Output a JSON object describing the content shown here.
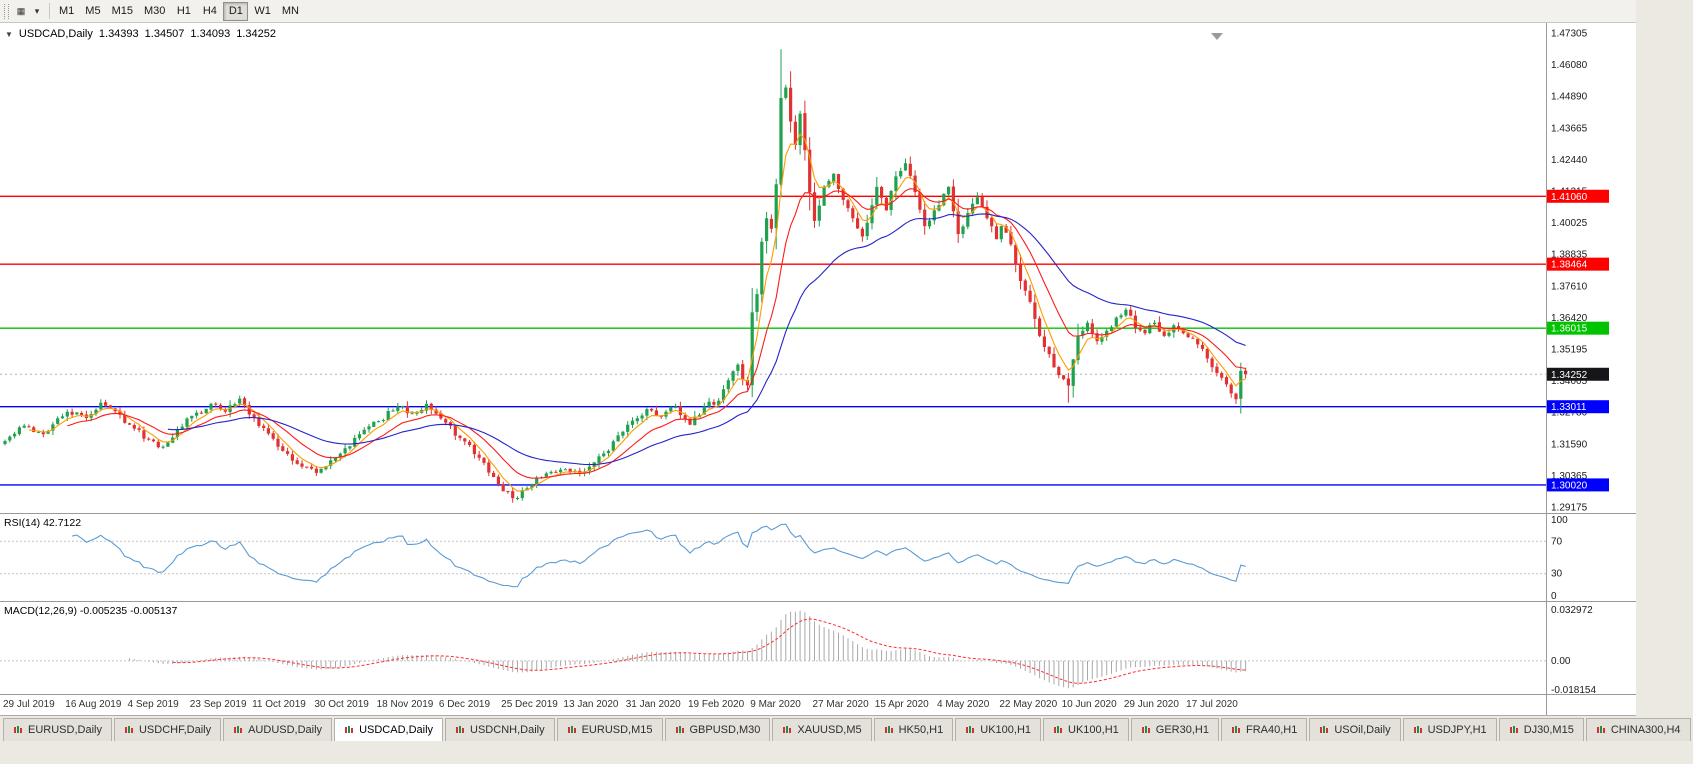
{
  "toolbar": {
    "icons": [
      {
        "name": "chart-icon",
        "glyph": "▦"
      },
      {
        "name": "dropdown-caret-icon",
        "glyph": "▾"
      }
    ],
    "timeframes": [
      {
        "label": "M1"
      },
      {
        "label": "M5"
      },
      {
        "label": "M15"
      },
      {
        "label": "M30"
      },
      {
        "label": "H1"
      },
      {
        "label": "H4"
      },
      {
        "label": "D1",
        "active": true
      },
      {
        "label": "W1"
      },
      {
        "label": "MN"
      }
    ]
  },
  "chart_header": {
    "collapse_glyph": "▼",
    "symbol": "USDCAD,Daily",
    "open": "1.34393",
    "high": "1.34507",
    "low": "1.34093",
    "close": "1.34252"
  },
  "chart_data": {
    "type": "candlestick",
    "symbol": "USDCAD",
    "timeframe": "Daily",
    "num_candles": 260,
    "candles_per_label": 13,
    "seed": 42,
    "ylim": [
      1.29175,
      1.47305
    ],
    "y_ticks": [
      "1.47305",
      "1.46080",
      "1.44890",
      "1.43665",
      "1.42440",
      "1.41215",
      "1.40025",
      "1.38835",
      "1.37610",
      "1.36420",
      "1.35195",
      "1.34005",
      "1.32780",
      "1.31590",
      "1.30365",
      "1.29175"
    ],
    "x_labels": [
      "29 Jul 2019",
      "16 Aug 2019",
      "4 Sep 2019",
      "23 Sep 2019",
      "11 Oct 2019",
      "30 Oct 2019",
      "18 Nov 2019",
      "6 Dec 2019",
      "25 Dec 2019",
      "13 Jan 2020",
      "31 Jan 2020",
      "19 Feb 2020",
      "9 Mar 2020",
      "27 Mar 2020",
      "15 Apr 2020",
      "4 May 2020",
      "22 May 2020",
      "10 Jun 2020",
      "29 Jun 2020",
      "17 Jul 2020"
    ],
    "price_anchors": [
      [
        0,
        1.317
      ],
      [
        4,
        1.3228
      ],
      [
        8,
        1.3196
      ],
      [
        13,
        1.3282
      ],
      [
        17,
        1.3258
      ],
      [
        20,
        1.3316
      ],
      [
        24,
        1.327
      ],
      [
        26,
        1.3232
      ],
      [
        30,
        1.3176
      ],
      [
        33,
        1.3148
      ],
      [
        36,
        1.3216
      ],
      [
        39,
        1.3266
      ],
      [
        43,
        1.3312
      ],
      [
        46,
        1.3282
      ],
      [
        49,
        1.3332
      ],
      [
        52,
        1.3258
      ],
      [
        55,
        1.3198
      ],
      [
        58,
        1.3132
      ],
      [
        62,
        1.3072
      ],
      [
        65,
        1.3048
      ],
      [
        68,
        1.3096
      ],
      [
        71,
        1.3142
      ],
      [
        74,
        1.3196
      ],
      [
        78,
        1.3246
      ],
      [
        82,
        1.3302
      ],
      [
        85,
        1.3276
      ],
      [
        88,
        1.3312
      ],
      [
        91,
        1.3256
      ],
      [
        95,
        1.3182
      ],
      [
        99,
        1.3106
      ],
      [
        102,
        1.3032
      ],
      [
        104,
        1.2978
      ],
      [
        107,
        1.2952
      ],
      [
        110,
        1.3006
      ],
      [
        113,
        1.3046
      ],
      [
        117,
        1.3062
      ],
      [
        120,
        1.3044
      ],
      [
        123,
        1.3088
      ],
      [
        126,
        1.3132
      ],
      [
        130,
        1.3232
      ],
      [
        134,
        1.3292
      ],
      [
        137,
        1.3262
      ],
      [
        140,
        1.3302
      ],
      [
        143,
        1.3232
      ],
      [
        146,
        1.3302
      ],
      [
        149,
        1.3324
      ],
      [
        151,
        1.3402
      ],
      [
        153,
        1.3462
      ],
      [
        154,
        1.3404
      ],
      [
        155,
        1.3382
      ],
      [
        156,
        1.3662
      ],
      [
        157,
        1.3732
      ],
      [
        158,
        1.3932
      ],
      [
        159,
        1.4022
      ],
      [
        160,
        1.3982
      ],
      [
        161,
        1.4152
      ],
      [
        162,
        1.4482
      ],
      [
        163,
        1.4522
      ],
      [
        164,
        1.4392
      ],
      [
        165,
        1.4302
      ],
      [
        166,
        1.4422
      ],
      [
        167,
        1.4282
      ],
      [
        168,
        1.4122
      ],
      [
        169,
        1.4012
      ],
      [
        171,
        1.4142
      ],
      [
        173,
        1.4192
      ],
      [
        175,
        1.4092
      ],
      [
        177,
        1.4022
      ],
      [
        179,
        1.3952
      ],
      [
        181,
        1.4072
      ],
      [
        182,
        1.4142
      ],
      [
        184,
        1.4052
      ],
      [
        186,
        1.4182
      ],
      [
        188,
        1.4232
      ],
      [
        190,
        1.4122
      ],
      [
        192,
        1.3992
      ],
      [
        194,
        1.4052
      ],
      [
        195,
        1.4072
      ],
      [
        197,
        1.4142
      ],
      [
        199,
        1.3962
      ],
      [
        201,
        1.4042
      ],
      [
        203,
        1.4102
      ],
      [
        205,
        1.4022
      ],
      [
        207,
        1.3942
      ],
      [
        208,
        1.3992
      ],
      [
        210,
        1.3922
      ],
      [
        212,
        1.3782
      ],
      [
        214,
        1.3702
      ],
      [
        216,
        1.3572
      ],
      [
        218,
        1.3502
      ],
      [
        220,
        1.3422
      ],
      [
        222,
        1.3382
      ],
      [
        224,
        1.3572
      ],
      [
        226,
        1.3622
      ],
      [
        228,
        1.3552
      ],
      [
        230,
        1.3592
      ],
      [
        232,
        1.3642
      ],
      [
        234,
        1.3672
      ],
      [
        236,
        1.3602
      ],
      [
        238,
        1.3582
      ],
      [
        240,
        1.3622
      ],
      [
        242,
        1.3572
      ],
      [
        244,
        1.3612
      ],
      [
        246,
        1.3582
      ],
      [
        248,
        1.3562
      ],
      [
        250,
        1.3522
      ],
      [
        252,
        1.3452
      ],
      [
        254,
        1.3412
      ],
      [
        256,
        1.3352
      ],
      [
        257,
        1.333
      ],
      [
        258,
        1.3438
      ],
      [
        259,
        1.34252
      ]
    ],
    "extremes": [
      {
        "index": 107,
        "low": 1.2952
      },
      {
        "index": 153,
        "high": 1.3465
      },
      {
        "index": 162,
        "high": 1.4668
      },
      {
        "index": 222,
        "low": 1.3316
      },
      {
        "index": 257,
        "low": 1.3312
      }
    ],
    "ohlc_current": {
      "open": 1.34393,
      "high": 1.34507,
      "low": 1.34093,
      "close": 1.34252
    },
    "current_price": {
      "value": 1.34252,
      "label": "1.34252",
      "badge_color": "#16161a",
      "line_color": "#b0b0b0"
    },
    "hlines": [
      {
        "price": 1.4106,
        "label": "1.41060",
        "color": "#ff0000"
      },
      {
        "price": 1.38464,
        "label": "1.38464",
        "color": "#ff0000"
      },
      {
        "price": 1.36015,
        "label": "1.36015",
        "color": "#00c400"
      },
      {
        "price": 1.33011,
        "label": "1.33011",
        "color": "#0000ff"
      },
      {
        "price": 1.3002,
        "label": "1.30020",
        "color": "#0000ff"
      }
    ],
    "candle_colors": {
      "up": "#1fa14e",
      "down": "#e03232"
    },
    "moving_averages": [
      {
        "name": "ma-fast",
        "period": 5,
        "color": "#ff9b00"
      },
      {
        "name": "ma-medium",
        "period": 13,
        "color": "#ff1a1a"
      },
      {
        "name": "ma-slow",
        "period": 34,
        "color": "#2424cc"
      }
    ],
    "rsi": {
      "label": "RSI(14) 42.7122",
      "period": 14,
      "current": 42.7122,
      "levels": [
        100,
        70,
        30,
        0
      ],
      "dashed_levels": [
        70,
        30
      ],
      "color": "#5b9bd5"
    },
    "macd": {
      "label": "MACD(12,26,9) -0.005235 -0.005137",
      "fast": 12,
      "slow": 26,
      "signal_period": 9,
      "main_value": -0.005235,
      "signal_value": -0.005137,
      "ylim": [
        -0.018154,
        0.032972
      ],
      "y_tick_labels": [
        "0.032972",
        "0.00",
        "-0.018154"
      ],
      "y_tick_values": [
        0.032972,
        0,
        -0.018154
      ],
      "hist_color": "#a9a9a9",
      "signal_color": "#ff2d2d"
    }
  },
  "tabs": [
    {
      "label": "EURUSD,Daily"
    },
    {
      "label": "USDCHF,Daily"
    },
    {
      "label": "AUDUSD,Daily"
    },
    {
      "label": "USDCAD,Daily",
      "active": true
    },
    {
      "label": "USDCNH,Daily"
    },
    {
      "label": "EURUSD,M15"
    },
    {
      "label": "GBPUSD,M30"
    },
    {
      "label": "XAUUSD,M5"
    },
    {
      "label": "HK50,H1"
    },
    {
      "label": "UK100,H1"
    },
    {
      "label": "UK100,H1"
    },
    {
      "label": "GER30,H1"
    },
    {
      "label": "FRA40,H1"
    },
    {
      "label": "USOil,Daily"
    },
    {
      "label": "USDJPY,H1"
    },
    {
      "label": "DJ30,M15"
    },
    {
      "label": "CHINA300,H4"
    }
  ]
}
